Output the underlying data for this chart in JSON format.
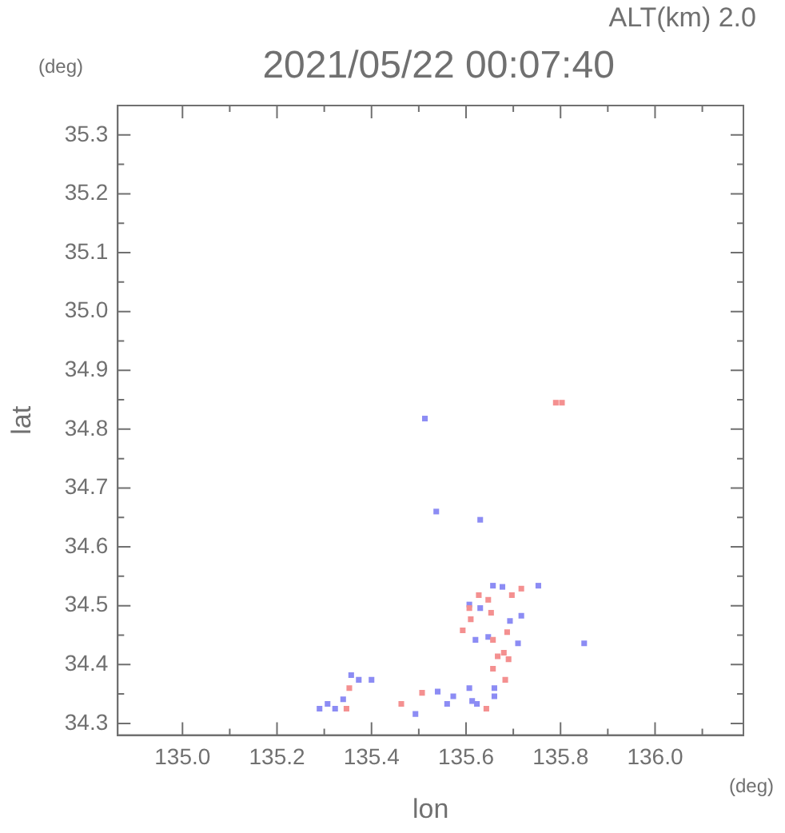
{
  "chart_data": {
    "type": "scatter",
    "title": "2021/05/22 00:07:40",
    "subtitle": "ALT(km) 2.0",
    "xlabel": "lon",
    "ylabel": "lat",
    "annotations": [
      "(deg)",
      "(deg)"
    ],
    "xlim": [
      134.863,
      136.187
    ],
    "ylim": [
      34.28,
      35.35
    ],
    "xticks": [
      {
        "value": 135.0,
        "label": "135.0"
      },
      {
        "value": 135.1,
        "label": null
      },
      135.2,
      {
        "value": 135.3,
        "label": null
      },
      135.4,
      {
        "value": 135.5,
        "label": null
      },
      135.6,
      {
        "value": 135.7,
        "label": null
      },
      135.8,
      {
        "value": 135.9,
        "label": null
      },
      {
        "value": 136.0,
        "label": "136.0"
      },
      {
        "value": 136.1,
        "label": null
      }
    ],
    "yticks": [
      34.3,
      {
        "value": 34.35,
        "label": null
      },
      34.4,
      {
        "value": 34.45,
        "label": null
      },
      34.5,
      {
        "value": 34.55,
        "label": null
      },
      34.6,
      {
        "value": 34.65,
        "label": null
      },
      34.7,
      {
        "value": 34.75,
        "label": null
      },
      34.8,
      {
        "value": 34.85,
        "label": null
      },
      34.9,
      {
        "value": 34.95,
        "label": null
      },
      {
        "value": 35.0,
        "label": "35.0"
      },
      {
        "value": 35.05,
        "label": null
      },
      35.1,
      {
        "value": 35.15,
        "label": null
      },
      35.2,
      {
        "value": 35.25,
        "label": null
      },
      35.3
    ],
    "grid": false,
    "legend": false,
    "marker": "square",
    "series": [
      {
        "color": "#f49090",
        "x": [
          135.607,
          135.61,
          135.593,
          135.653,
          135.657,
          135.667,
          135.657,
          135.68,
          135.687,
          135.683,
          135.643,
          135.463,
          135.353,
          135.347,
          135.717,
          135.697,
          135.627,
          135.647,
          135.69,
          135.507,
          135.803,
          135.79
        ],
        "values": [
          34.496,
          34.477,
          34.458,
          34.488,
          34.442,
          34.414,
          34.393,
          34.42,
          34.455,
          34.374,
          34.325,
          34.333,
          34.36,
          34.325,
          34.529,
          34.518,
          34.518,
          34.51,
          34.409,
          34.352,
          34.845,
          34.845
        ]
      },
      {
        "color": "#8c8cf4",
        "x": [
          135.307,
          135.323,
          135.34,
          135.29,
          135.357,
          135.373,
          135.4,
          135.493,
          135.54,
          135.573,
          135.607,
          135.56,
          135.623,
          135.613,
          135.66,
          135.66,
          135.657,
          135.677,
          135.63,
          135.607,
          135.647,
          135.62,
          135.71,
          135.693,
          135.717,
          135.753,
          135.85,
          135.63,
          135.537,
          135.513
        ],
        "values": [
          34.333,
          34.325,
          34.341,
          34.325,
          34.382,
          34.374,
          34.374,
          34.316,
          34.354,
          34.346,
          34.36,
          34.333,
          34.333,
          34.338,
          34.36,
          34.346,
          34.534,
          34.532,
          34.496,
          34.502,
          34.447,
          34.442,
          34.436,
          34.474,
          34.483,
          34.534,
          34.436,
          34.646,
          34.66,
          34.818
        ]
      }
    ]
  }
}
